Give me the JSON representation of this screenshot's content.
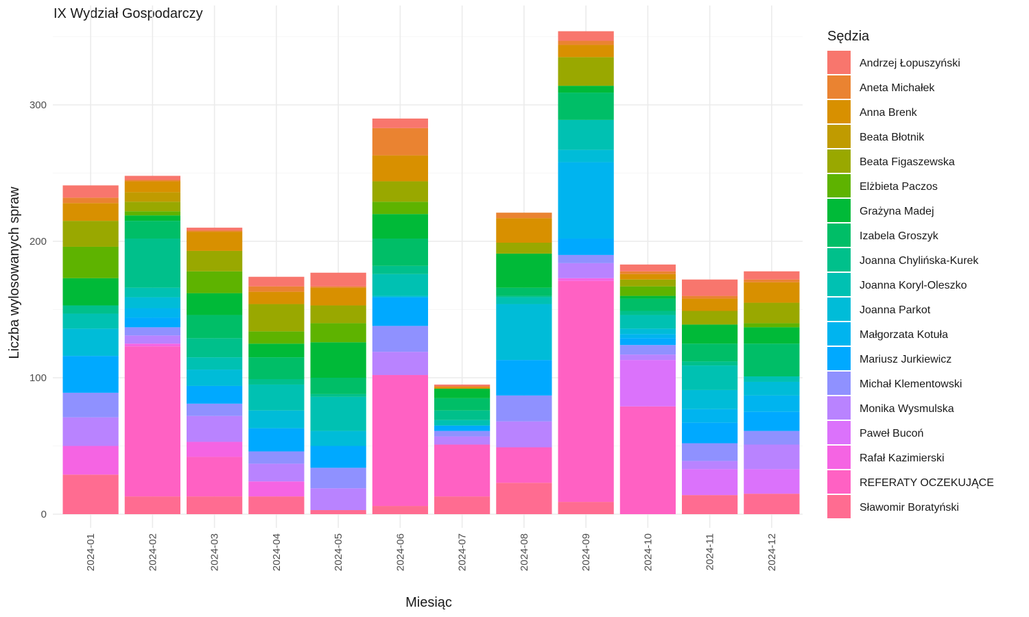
{
  "chart_data": {
    "type": "bar",
    "stacked": true,
    "title": "IX Wydział Gospodarczy",
    "xlabel": "Miesiąc",
    "ylabel": "Liczba wylosowanych spraw",
    "legend_title": "Sędzia",
    "legend_position": "right",
    "grid": true,
    "ylim": [
      0,
      360
    ],
    "yticks": [
      0,
      100,
      200,
      300
    ],
    "categories": [
      "2024-01",
      "2024-02",
      "2024-03",
      "2024-04",
      "2024-05",
      "2024-06",
      "2024-07",
      "2024-08",
      "2024-09",
      "2024-10",
      "2024-11",
      "2024-12"
    ],
    "series": [
      {
        "name": "Sławomir Boratyński",
        "color": "#FF6C91",
        "values": [
          29,
          13,
          13,
          13,
          3,
          6,
          13,
          23,
          9,
          0,
          14,
          15
        ]
      },
      {
        "name": "REFERATY OCZEKUJĄCE",
        "color": "#FF61C3",
        "values": [
          0,
          110,
          29,
          0,
          0,
          96,
          38,
          26,
          162,
          79,
          0,
          0
        ]
      },
      {
        "name": "Rafał Kazimierski",
        "color": "#F564E3",
        "values": [
          21,
          2,
          11,
          11,
          0,
          0,
          0,
          0,
          2,
          0,
          0,
          0
        ]
      },
      {
        "name": "Paweł Bucoń",
        "color": "#DB72FB",
        "values": [
          0,
          0,
          0,
          0,
          0,
          0,
          0,
          0,
          0,
          34,
          19,
          18
        ]
      },
      {
        "name": "Monika Wysmulska",
        "color": "#B983FF",
        "values": [
          21,
          6,
          19,
          13,
          16,
          17,
          6,
          19,
          11,
          4,
          6,
          18
        ]
      },
      {
        "name": "Michał Klementowski",
        "color": "#8F91FF",
        "values": [
          18,
          6,
          9,
          9,
          15,
          19,
          4,
          19,
          6,
          7,
          13,
          10
        ]
      },
      {
        "name": "Mariusz Jurkiewicz",
        "color": "#00A9FF",
        "values": [
          27,
          7,
          13,
          17,
          16,
          21,
          4,
          26,
          12,
          5,
          15,
          14
        ]
      },
      {
        "name": "Małgorzata Kotuła",
        "color": "#00B4EF",
        "values": [
          0,
          7,
          0,
          0,
          0,
          0,
          0,
          0,
          56,
          3,
          10,
          12
        ]
      },
      {
        "name": "Joanna Parkot",
        "color": "#00BCD8",
        "values": [
          20,
          8,
          12,
          13,
          11,
          1,
          0,
          41,
          9,
          4,
          14,
          10
        ]
      },
      {
        "name": "Joanna Koryl-Oleszko",
        "color": "#00C1B2",
        "values": [
          11,
          7,
          9,
          19,
          25,
          16,
          4,
          5,
          22,
          10,
          18,
          4
        ]
      },
      {
        "name": "Joanna Chylińska-Kurek",
        "color": "#00C08B",
        "values": [
          6,
          36,
          14,
          4,
          2,
          6,
          7,
          1,
          0,
          3,
          3,
          0
        ]
      },
      {
        "name": "Izabela Groszyk",
        "color": "#00BE67",
        "values": [
          0,
          13,
          17,
          16,
          12,
          20,
          9,
          6,
          20,
          9,
          13,
          24
        ]
      },
      {
        "name": "Grażyna Madej",
        "color": "#00BA38",
        "values": [
          20,
          4,
          16,
          10,
          26,
          18,
          7,
          25,
          5,
          2,
          14,
          12
        ]
      },
      {
        "name": "Elżbieta Paczos",
        "color": "#5EB300",
        "values": [
          23,
          3,
          16,
          9,
          14,
          9,
          0,
          0,
          0,
          7,
          0,
          3
        ]
      },
      {
        "name": "Beata Figaszewska",
        "color": "#99A800",
        "values": [
          19,
          7,
          15,
          20,
          13,
          15,
          0,
          8,
          21,
          5,
          10,
          15
        ]
      },
      {
        "name": "Beata Błotnik",
        "color": "#C09B00",
        "values": [
          0,
          7,
          0,
          0,
          0,
          0,
          0,
          0,
          0,
          0,
          0,
          0
        ]
      },
      {
        "name": "Anna Brenk",
        "color": "#D89000",
        "values": [
          13,
          8,
          14,
          9,
          13,
          19,
          1,
          18,
          9,
          4,
          9,
          15
        ]
      },
      {
        "name": "Aneta Michałek",
        "color": "#EA8331",
        "values": [
          4,
          1,
          1,
          4,
          1,
          20,
          1,
          4,
          3,
          2,
          2,
          2
        ]
      },
      {
        "name": "Andrzej Łopuszyński",
        "color": "#F8766D",
        "values": [
          9,
          3,
          2,
          7,
          10,
          7,
          1,
          0,
          7,
          5,
          12,
          6
        ]
      }
    ],
    "legend_order": [
      "Andrzej Łopuszyński",
      "Aneta Michałek",
      "Anna Brenk",
      "Beata Błotnik",
      "Beata Figaszewska",
      "Elżbieta Paczos",
      "Grażyna Madej",
      "Izabela Groszyk",
      "Joanna Chylińska-Kurek",
      "Joanna Koryl-Oleszko",
      "Joanna Parkot",
      "Małgorzata Kotuła",
      "Mariusz Jurkiewicz",
      "Michał Klementowski",
      "Monika Wysmulska",
      "Paweł Bucoń",
      "Rafał Kazimierski",
      "REFERATY OCZEKUJĄCE",
      "Sławomir Boratyński"
    ]
  }
}
